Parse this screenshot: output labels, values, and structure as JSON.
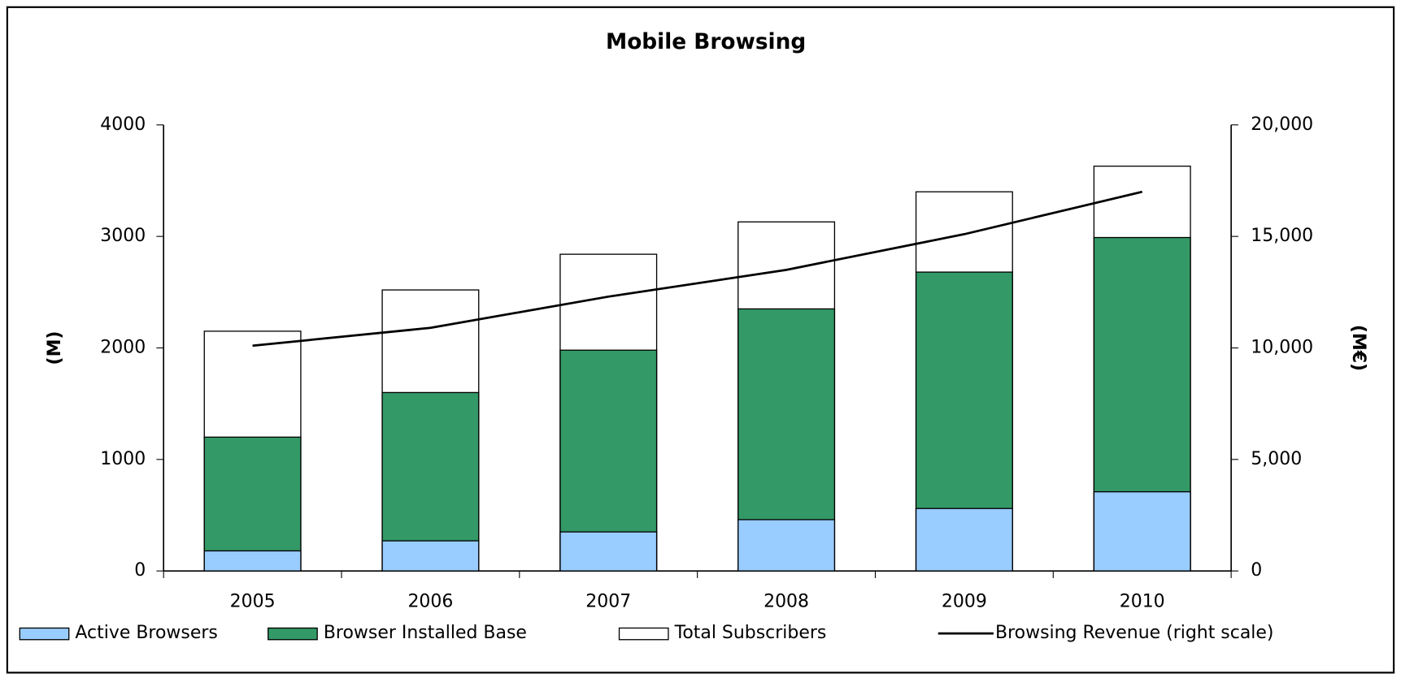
{
  "chart_data": {
    "type": "bar",
    "title": "Mobile Browsing",
    "categories": [
      "2005",
      "2006",
      "2007",
      "2008",
      "2009",
      "2010"
    ],
    "series": [
      {
        "name": "Active Browsers",
        "color": "#99ccff",
        "values": [
          180,
          270,
          350,
          460,
          560,
          710
        ]
      },
      {
        "name": "Browser Installed Base",
        "color": "#339966",
        "values": [
          1200,
          1600,
          1980,
          2350,
          2680,
          2990
        ]
      },
      {
        "name": "Total Subscribers",
        "color": "#ffffff",
        "values": [
          2150,
          2520,
          2840,
          3130,
          3400,
          3630
        ]
      },
      {
        "name": "Browsing Revenue (right scale)",
        "color": "#000000",
        "type": "line",
        "axis": "y2",
        "values": [
          10100,
          10900,
          12300,
          13500,
          15100,
          17000
        ]
      }
    ],
    "ylabel": "(M)",
    "y2label": "(M€)",
    "ylim": [
      0,
      4000
    ],
    "yticks": [
      0,
      1000,
      2000,
      3000,
      4000
    ],
    "y2lim": [
      0,
      20000
    ],
    "y2ticks": [
      0,
      {
        "value": 5000,
        "label": "5,000"
      },
      {
        "value": 10000,
        "label": "10,000"
      },
      {
        "value": 15000,
        "label": "15,000"
      },
      {
        "value": 20000,
        "label": "20,000"
      }
    ],
    "legend": "bottom"
  }
}
